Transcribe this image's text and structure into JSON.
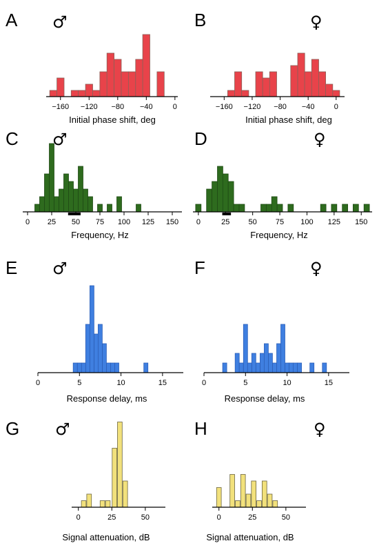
{
  "chart_data": [
    {
      "panel": "A",
      "sex": "♂",
      "type": "bar",
      "xlabel": "Initial phase shift, deg",
      "xticks": [
        -160,
        -120,
        -80,
        -40,
        0
      ],
      "xlim": [
        -180,
        4
      ],
      "bin_width": 10,
      "bar_color": "#e8434a",
      "edge_color": "#8a6058",
      "counts": {
        "-170": 1,
        "-160": 3,
        "-140": 1,
        "-130": 1,
        "-120": 2,
        "-110": 1,
        "-100": 4,
        "-90": 7,
        "-80": 6,
        "-70": 4,
        "-60": 4,
        "-50": 6,
        "-40": 10,
        "-20": 4
      }
    },
    {
      "panel": "B",
      "sex": "♀",
      "type": "bar",
      "xlabel": "Initial phase shift, deg",
      "xticks": [
        -160,
        -120,
        -80,
        -40,
        0
      ],
      "xlim": [
        -180,
        12
      ],
      "bin_width": 10,
      "bar_color": "#e8434a",
      "edge_color": "#8a6058",
      "counts": {
        "-150": 1,
        "-140": 4,
        "-130": 1,
        "-110": 4,
        "-100": 3,
        "-90": 4,
        "-60": 5,
        "-50": 7,
        "-40": 4,
        "-30": 6,
        "-20": 4,
        "-10": 2,
        "0": 1
      }
    },
    {
      "panel": "C",
      "sex": "♂",
      "type": "bar",
      "xlabel": "Frequency, Hz",
      "xticks": [
        0,
        25,
        50,
        75,
        100,
        125,
        150
      ],
      "xlim": [
        -5,
        160
      ],
      "bin_width": 5,
      "bar_color": "#2e6b1e",
      "edge_color": "#1e4a14",
      "counts": {
        "10": 1,
        "15": 2,
        "20": 5,
        "25": 9,
        "30": 2,
        "35": 3,
        "40": 5,
        "45": 4,
        "50": 3,
        "55": 6,
        "60": 3,
        "65": 2,
        "75": 1,
        "85": 1,
        "95": 2,
        "115": 1
      },
      "range_marker": [
        42,
        55
      ]
    },
    {
      "panel": "D",
      "sex": "♀",
      "type": "bar",
      "xlabel": "Frequency, Hz",
      "xticks": [
        0,
        25,
        50,
        75,
        100,
        125,
        150
      ],
      "xlim": [
        -5,
        160
      ],
      "bin_width": 5,
      "bar_color": "#2e6b1e",
      "edge_color": "#1e4a14",
      "counts": {
        "0": 1,
        "10": 3,
        "15": 4,
        "20": 6,
        "25": 5,
        "30": 4,
        "35": 1,
        "40": 1,
        "60": 1,
        "65": 1,
        "70": 2,
        "75": 1,
        "85": 1,
        "115": 1,
        "125": 1,
        "135": 1,
        "145": 1,
        "155": 1
      },
      "range_marker": [
        22,
        30
      ]
    },
    {
      "panel": "E",
      "sex": "♂",
      "type": "bar",
      "xlabel": "Response delay, ms",
      "xticks": [
        0,
        5.0,
        10.0,
        15.0
      ],
      "xlim": [
        0,
        17.5
      ],
      "bin_width": 0.5,
      "bar_color": "#3f7fe0",
      "edge_color": "#2c5fb8",
      "counts": {
        "4.5": 1,
        "5": 1,
        "5.5": 1,
        "6": 5,
        "6.5": 9,
        "7": 4,
        "7.5": 5,
        "8": 3,
        "8.5": 1,
        "9": 1,
        "9.5": 1,
        "13": 1
      }
    },
    {
      "panel": "F",
      "sex": "♀",
      "type": "bar",
      "xlabel": "Response delay, ms",
      "xticks": [
        0,
        5.0,
        10.0,
        15.0
      ],
      "xlim": [
        0,
        17.5
      ],
      "bin_width": 0.5,
      "bar_color": "#3f7fe0",
      "edge_color": "#2c5fb8",
      "counts": {
        "2.5": 1,
        "4": 2,
        "4.5": 1,
        "5": 5,
        "5.5": 1,
        "6": 2,
        "6.5": 1,
        "7": 2,
        "7.5": 3,
        "8": 2,
        "8.5": 1,
        "9": 3,
        "9.5": 5,
        "10": 1,
        "10.5": 1,
        "11": 1,
        "11.5": 1,
        "13": 1,
        "14.5": 1
      }
    },
    {
      "panel": "G",
      "sex": "♂",
      "type": "bar",
      "xlabel": "Signal attenuation, dB",
      "xticks": [
        0,
        25,
        50
      ],
      "xlim": [
        -5,
        65
      ],
      "bin_width": 3.5,
      "bar_color": "#f2e17c",
      "edge_color": "#6b6540",
      "counts": {
        "4": 1,
        "8": 2,
        "18": 1,
        "22": 1,
        "27": 9,
        "31": 13,
        "35": 4
      }
    },
    {
      "panel": "H",
      "sex": "♀",
      "type": "bar",
      "xlabel": "Signal attenuation, dB",
      "xticks": [
        0,
        25,
        50
      ],
      "xlim": [
        -5,
        65
      ],
      "bin_width": 3.5,
      "bar_color": "#f2e17c",
      "edge_color": "#6b6540",
      "counts": {
        "0": 3,
        "10": 5,
        "14": 1,
        "18": 5,
        "22": 2,
        "26": 4,
        "30": 1,
        "34": 4,
        "38": 2,
        "42": 1
      }
    }
  ]
}
